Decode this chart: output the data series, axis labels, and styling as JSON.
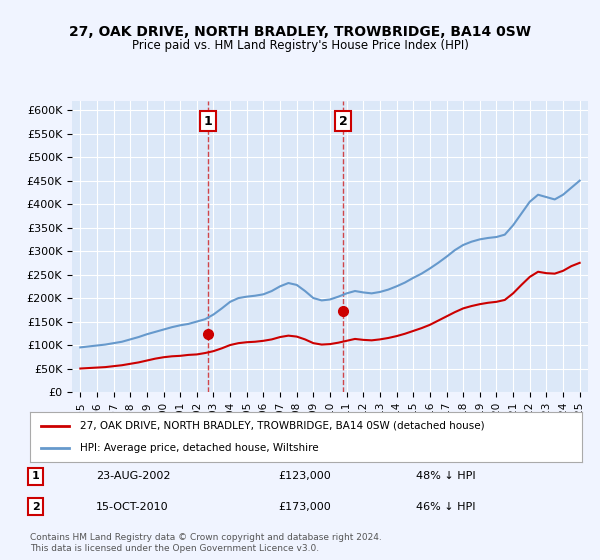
{
  "title": "27, OAK DRIVE, NORTH BRADLEY, TROWBRIDGE, BA14 0SW",
  "subtitle": "Price paid vs. HM Land Registry's House Price Index (HPI)",
  "legend_label_red": "27, OAK DRIVE, NORTH BRADLEY, TROWBRIDGE, BA14 0SW (detached house)",
  "legend_label_blue": "HPI: Average price, detached house, Wiltshire",
  "sale1_label": "1",
  "sale1_date": "23-AUG-2002",
  "sale1_price": "£123,000",
  "sale1_pct": "48% ↓ HPI",
  "sale2_label": "2",
  "sale2_date": "15-OCT-2010",
  "sale2_price": "£173,000",
  "sale2_pct": "46% ↓ HPI",
  "footer": "Contains HM Land Registry data © Crown copyright and database right 2024.\nThis data is licensed under the Open Government Licence v3.0.",
  "background_color": "#f0f4ff",
  "plot_bg_color": "#dce8f8",
  "red_color": "#cc0000",
  "blue_color": "#6699cc",
  "sale1_x": 2002.65,
  "sale1_y_red": 123000,
  "sale2_x": 2010.79,
  "sale2_y_red": 173000,
  "ylim": [
    0,
    620000
  ],
  "xlim": [
    1994.5,
    2025.5
  ],
  "yticks": [
    0,
    50000,
    100000,
    150000,
    200000,
    250000,
    300000,
    350000,
    400000,
    450000,
    500000,
    550000,
    600000
  ],
  "xticks": [
    1995,
    1996,
    1997,
    1998,
    1999,
    2000,
    2001,
    2002,
    2003,
    2004,
    2005,
    2006,
    2007,
    2008,
    2009,
    2010,
    2011,
    2012,
    2013,
    2014,
    2015,
    2016,
    2017,
    2018,
    2019,
    2020,
    2021,
    2022,
    2023,
    2024,
    2025
  ],
  "hpi_x": [
    1995,
    1995.5,
    1996,
    1996.5,
    1997,
    1997.5,
    1998,
    1998.5,
    1999,
    1999.5,
    2000,
    2000.5,
    2001,
    2001.5,
    2002,
    2002.5,
    2003,
    2003.5,
    2004,
    2004.5,
    2005,
    2005.5,
    2006,
    2006.5,
    2007,
    2007.5,
    2008,
    2008.5,
    2009,
    2009.5,
    2010,
    2010.5,
    2011,
    2011.5,
    2012,
    2012.5,
    2013,
    2013.5,
    2014,
    2014.5,
    2015,
    2015.5,
    2016,
    2016.5,
    2017,
    2017.5,
    2018,
    2018.5,
    2019,
    2019.5,
    2020,
    2020.5,
    2021,
    2021.5,
    2022,
    2022.5,
    2023,
    2023.5,
    2024,
    2024.5,
    2025
  ],
  "hpi_y": [
    95000,
    97000,
    99000,
    101000,
    104000,
    107000,
    112000,
    117000,
    123000,
    128000,
    133000,
    138000,
    142000,
    145000,
    150000,
    155000,
    165000,
    178000,
    192000,
    200000,
    203000,
    205000,
    208000,
    215000,
    225000,
    232000,
    228000,
    215000,
    200000,
    195000,
    197000,
    203000,
    210000,
    215000,
    212000,
    210000,
    213000,
    218000,
    225000,
    233000,
    243000,
    252000,
    263000,
    275000,
    288000,
    302000,
    313000,
    320000,
    325000,
    328000,
    330000,
    335000,
    355000,
    380000,
    405000,
    420000,
    415000,
    410000,
    420000,
    435000,
    450000
  ],
  "red_x": [
    1995,
    1995.5,
    1996,
    1996.5,
    1997,
    1997.5,
    1998,
    1998.5,
    1999,
    1999.5,
    2000,
    2000.5,
    2001,
    2001.5,
    2002,
    2002.5,
    2003,
    2003.5,
    2004,
    2004.5,
    2005,
    2005.5,
    2006,
    2006.5,
    2007,
    2007.5,
    2008,
    2008.5,
    2009,
    2009.5,
    2010,
    2010.5,
    2011,
    2011.5,
    2012,
    2012.5,
    2013,
    2013.5,
    2014,
    2014.5,
    2015,
    2015.5,
    2016,
    2016.5,
    2017,
    2017.5,
    2018,
    2018.5,
    2019,
    2019.5,
    2020,
    2020.5,
    2021,
    2021.5,
    2022,
    2022.5,
    2023,
    2023.5,
    2024,
    2024.5,
    2025
  ],
  "red_y": [
    50000,
    51000,
    52000,
    53000,
    55000,
    57000,
    60000,
    63000,
    67000,
    71000,
    74000,
    76000,
    77000,
    79000,
    80000,
    83000,
    87000,
    93000,
    100000,
    104000,
    106000,
    107000,
    109000,
    112000,
    117000,
    120000,
    118000,
    112000,
    104000,
    101000,
    102000,
    105000,
    109000,
    113000,
    111000,
    110000,
    112000,
    115000,
    119000,
    124000,
    130000,
    136000,
    143000,
    152000,
    161000,
    170000,
    178000,
    183000,
    187000,
    190000,
    192000,
    196000,
    210000,
    228000,
    245000,
    256000,
    253000,
    252000,
    258000,
    268000,
    275000
  ]
}
